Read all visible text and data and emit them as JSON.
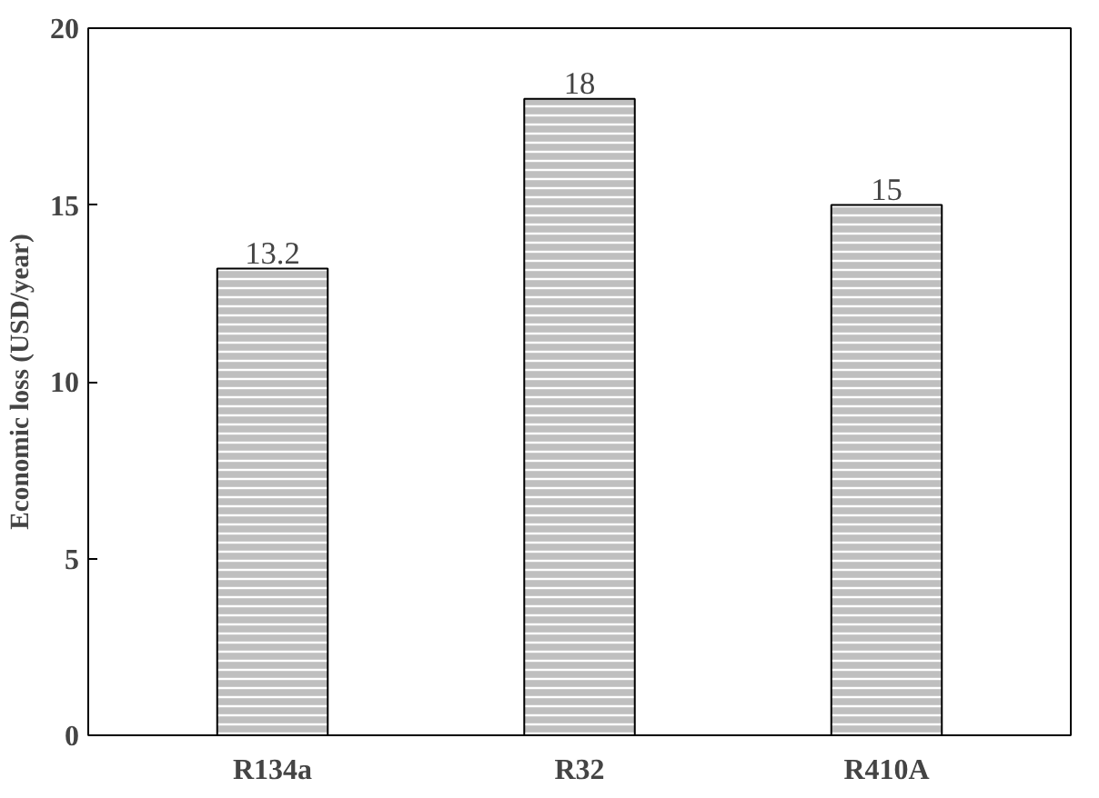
{
  "chart_data": {
    "type": "bar",
    "ylabel": "Economic loss (USD/year)",
    "categories": [
      "R134a",
      "R32",
      "R410A"
    ],
    "values": [
      13.2,
      18,
      15
    ],
    "color": "#bfbfbf",
    "ylim": [
      0,
      20
    ],
    "yticks": [
      0,
      5,
      10,
      15,
      20
    ],
    "grid": false,
    "data_labels": true
  }
}
